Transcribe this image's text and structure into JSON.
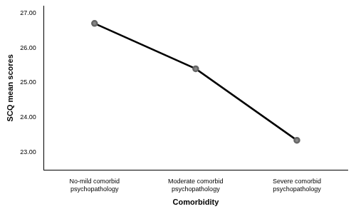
{
  "chart_data": {
    "type": "line",
    "x_label": "Comorbidity",
    "y_label": "SCQ mean scores",
    "categories": [
      "No-mild comorbid psychopathology",
      "Moderate comorbid psychopathology",
      "Severe comorbid psychopathology"
    ],
    "values": [
      26.7,
      25.4,
      23.35
    ],
    "color": "#000000",
    "marker": "circle",
    "ylim": [
      22.5,
      27.2
    ],
    "yticks": [
      {
        "value": 23,
        "label": "23.00"
      },
      {
        "value": 24,
        "label": "24.00"
      },
      {
        "value": 25,
        "label": "25.00"
      },
      {
        "value": 26,
        "label": "26.00"
      },
      {
        "value": 27,
        "label": "27.00"
      }
    ],
    "grid": false
  }
}
